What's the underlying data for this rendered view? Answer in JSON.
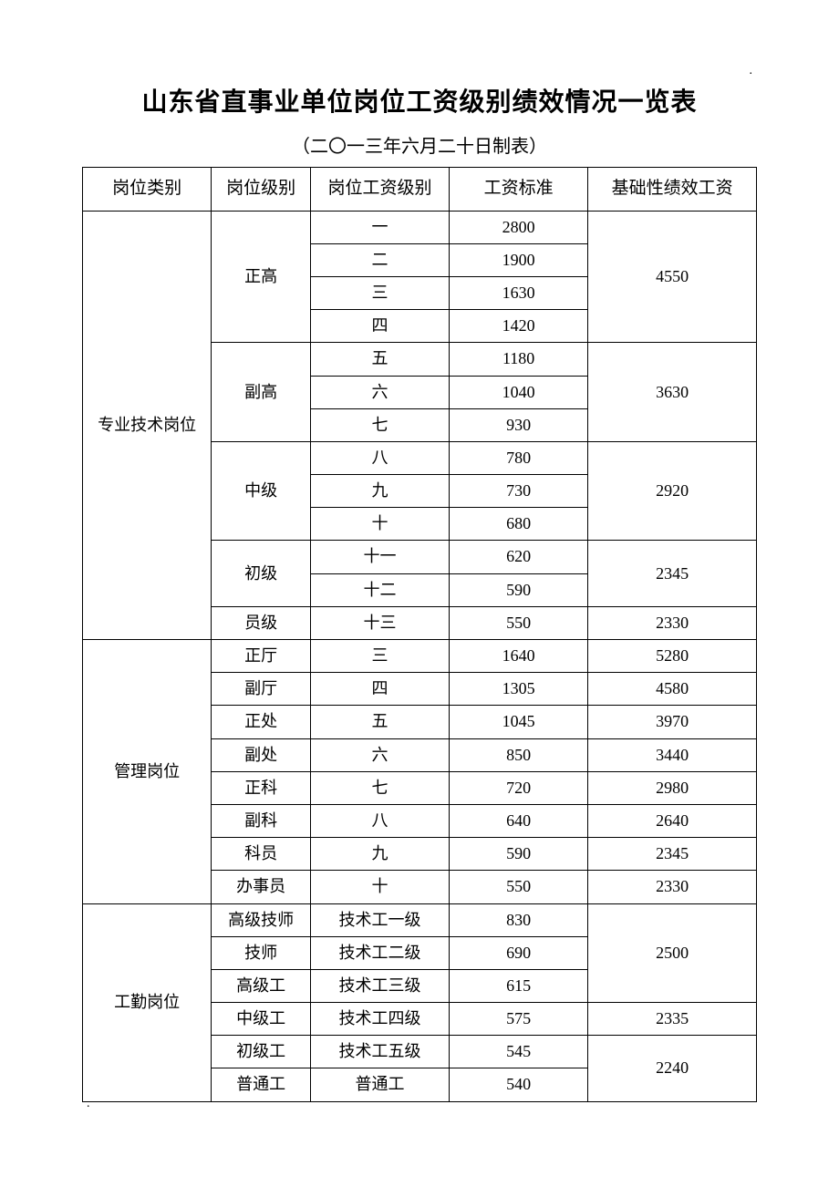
{
  "title": "山东省直事业单位岗位工资级别绩效情况一览表",
  "subtitle": "（二〇一三年六月二十日制表）",
  "columns": [
    "岗位类别",
    "岗位级别",
    "岗位工资级别",
    "工资标准",
    "基础性绩效工资"
  ],
  "groupA": {
    "category": "专业技术岗位",
    "sub": {
      "g1": {
        "label": "正高",
        "perf": "4550",
        "rows": [
          {
            "lvl": "一",
            "std": "2800"
          },
          {
            "lvl": "二",
            "std": "1900"
          },
          {
            "lvl": "三",
            "std": "1630"
          },
          {
            "lvl": "四",
            "std": "1420"
          }
        ]
      },
      "g2": {
        "label": "副高",
        "perf": "3630",
        "rows": [
          {
            "lvl": "五",
            "std": "1180"
          },
          {
            "lvl": "六",
            "std": "1040"
          },
          {
            "lvl": "七",
            "std": "930"
          }
        ]
      },
      "g3": {
        "label": "中级",
        "perf": "2920",
        "rows": [
          {
            "lvl": "八",
            "std": "780"
          },
          {
            "lvl": "九",
            "std": "730"
          },
          {
            "lvl": "十",
            "std": "680"
          }
        ]
      },
      "g4": {
        "label": "初级",
        "perf": "2345",
        "rows": [
          {
            "lvl": "十一",
            "std": "620"
          },
          {
            "lvl": "十二",
            "std": "590"
          }
        ]
      },
      "g5": {
        "label": "员级",
        "perf": "2330",
        "rows": [
          {
            "lvl": "十三",
            "std": "550"
          }
        ]
      }
    }
  },
  "groupB": {
    "category": "管理岗位",
    "rows": [
      {
        "rank": "正厅",
        "lvl": "三",
        "std": "1640",
        "perf": "5280"
      },
      {
        "rank": "副厅",
        "lvl": "四",
        "std": "1305",
        "perf": "4580"
      },
      {
        "rank": "正处",
        "lvl": "五",
        "std": "1045",
        "perf": "3970"
      },
      {
        "rank": "副处",
        "lvl": "六",
        "std": "850",
        "perf": "3440"
      },
      {
        "rank": "正科",
        "lvl": "七",
        "std": "720",
        "perf": "2980"
      },
      {
        "rank": "副科",
        "lvl": "八",
        "std": "640",
        "perf": "2640"
      },
      {
        "rank": "科员",
        "lvl": "九",
        "std": "590",
        "perf": "2345"
      },
      {
        "rank": "办事员",
        "lvl": "十",
        "std": "550",
        "perf": "2330"
      }
    ]
  },
  "groupC": {
    "category": "工勤岗位",
    "perf1": "2500",
    "perf2": "2335",
    "perf3": "2240",
    "rows": [
      {
        "rank": "高级技师",
        "lvl": "技术工一级",
        "std": "830"
      },
      {
        "rank": "技师",
        "lvl": "技术工二级",
        "std": "690"
      },
      {
        "rank": "高级工",
        "lvl": "技术工三级",
        "std": "615"
      },
      {
        "rank": "中级工",
        "lvl": "技术工四级",
        "std": "575"
      },
      {
        "rank": "初级工",
        "lvl": "技术工五级",
        "std": "545"
      },
      {
        "rank": "普通工",
        "lvl": "普通工",
        "std": "540"
      }
    ]
  }
}
